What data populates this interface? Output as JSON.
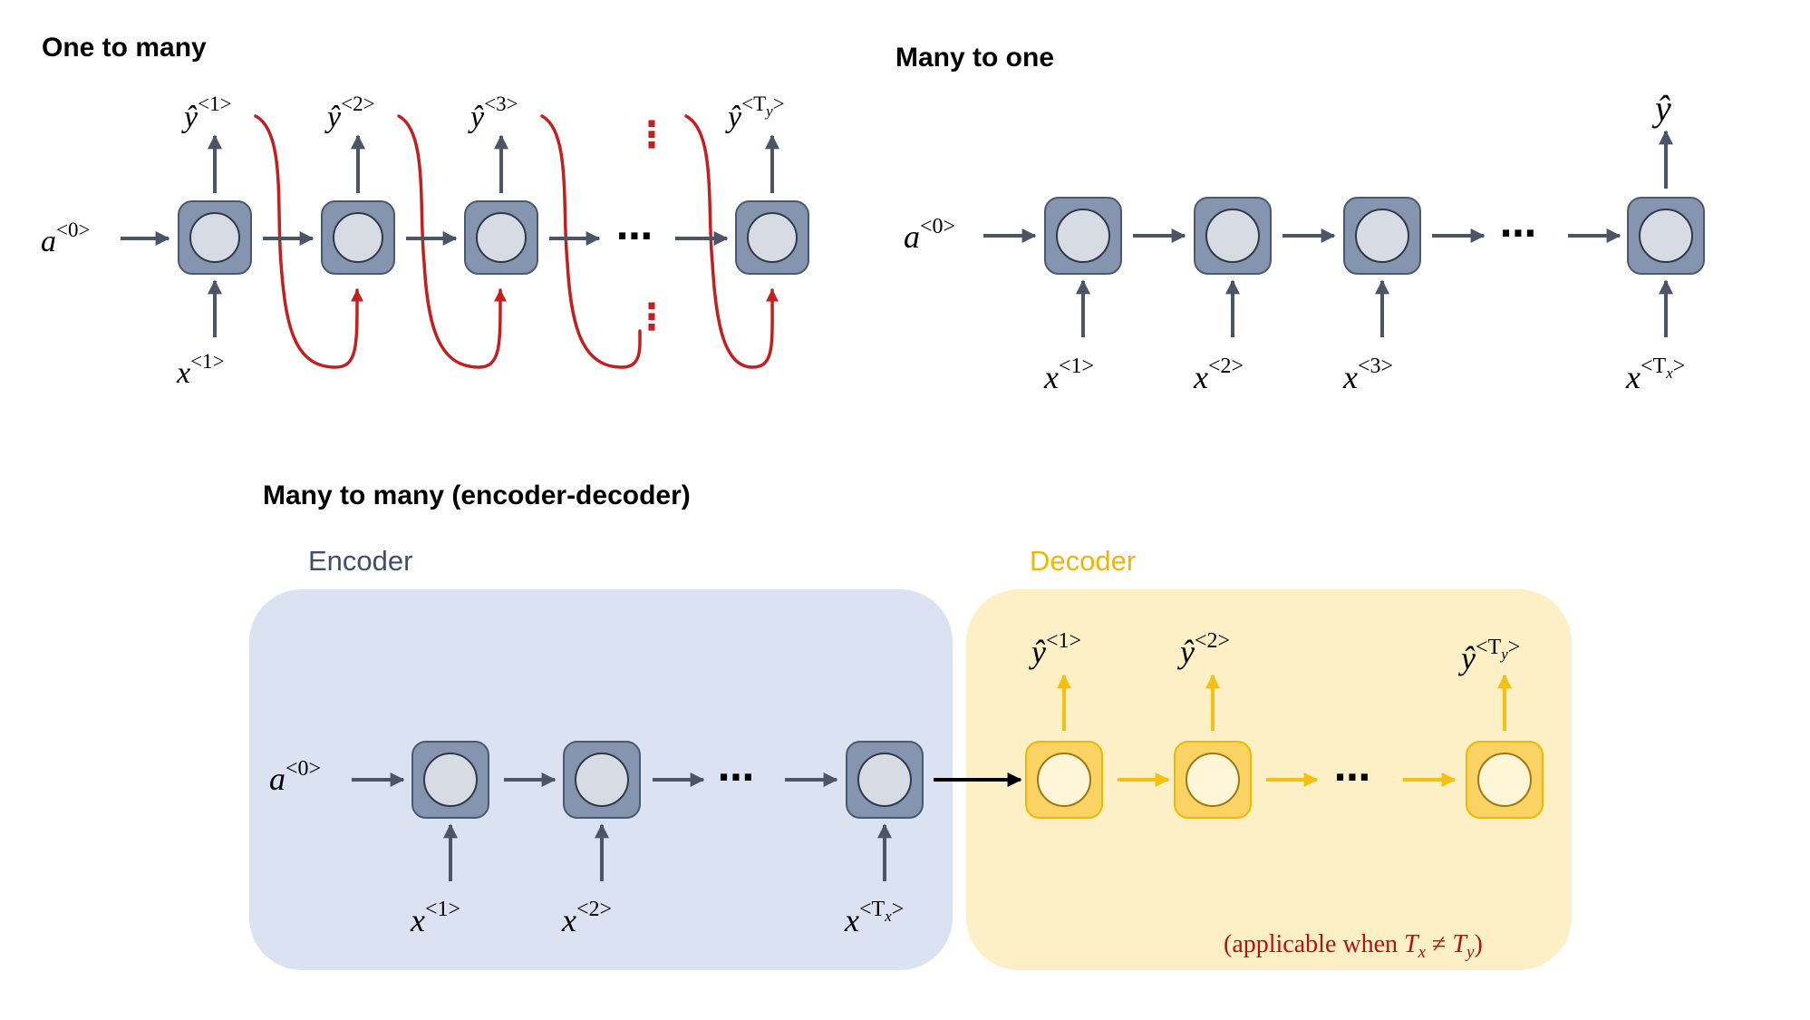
{
  "colors": {
    "cell_gray": "#8595b0",
    "cell_gray_stroke": "#4b596e",
    "cell_inner": "#d6dbe4",
    "arrow_gray": "#4b5566",
    "arrow_red": "#c41e1e",
    "encoder_bg": "#dbe3f3",
    "decoder_bg": "#fdf0c6",
    "cell_yellow": "#fbd365",
    "cell_yellow_stroke": "#efb800",
    "arrow_yellow": "#f5c010",
    "encoder_label": "#3f4f6b",
    "decoder_label": "#f4b400",
    "note_red": "#b51212"
  },
  "one_to_many": {
    "title": "One to many",
    "input_state": "a",
    "input_state_sup": "<0>",
    "inputs": [
      {
        "base": "x",
        "sup": "<1>"
      }
    ],
    "outputs": [
      {
        "base": "ŷ",
        "sup": "<1>"
      },
      {
        "base": "ŷ",
        "sup": "<2>"
      },
      {
        "base": "ŷ",
        "sup": "<3>"
      },
      {
        "base": "ŷ",
        "sup": "<T",
        "sub": "y",
        "close": ">"
      }
    ],
    "ellipsis": "⋯",
    "vdots": "⋮"
  },
  "many_to_one": {
    "title": "Many to one",
    "input_state": "a",
    "input_state_sup": "<0>",
    "output": "ŷ",
    "inputs": [
      {
        "base": "x",
        "sup": "<1>"
      },
      {
        "base": "x",
        "sup": "<2>"
      },
      {
        "base": "x",
        "sup": "<3>"
      },
      {
        "base": "x",
        "sup": "<T",
        "sub": "x",
        "close": ">"
      }
    ],
    "ellipsis": "⋯"
  },
  "many_to_many": {
    "title": "Many to many (encoder-decoder)",
    "encoder_label": "Encoder",
    "decoder_label": "Decoder",
    "input_state": "a",
    "input_state_sup": "<0>",
    "encoder_inputs": [
      {
        "base": "x",
        "sup": "<1>"
      },
      {
        "base": "x",
        "sup": "<2>"
      },
      {
        "base": "x",
        "sup": "<T",
        "sub": "x",
        "close": ">"
      }
    ],
    "decoder_outputs": [
      {
        "base": "ŷ",
        "sup": "<1>"
      },
      {
        "base": "ŷ",
        "sup": "<2>"
      },
      {
        "base": "ŷ",
        "sup": "<T",
        "sub": "y",
        "close": ">"
      }
    ],
    "ellipsis": "⋯",
    "note": {
      "prefix": "(applicable when ",
      "lhs": "T",
      "lhs_sub": "x",
      "neq": " ≠ ",
      "rhs": "T",
      "rhs_sub": "y",
      "suffix": ")"
    }
  }
}
